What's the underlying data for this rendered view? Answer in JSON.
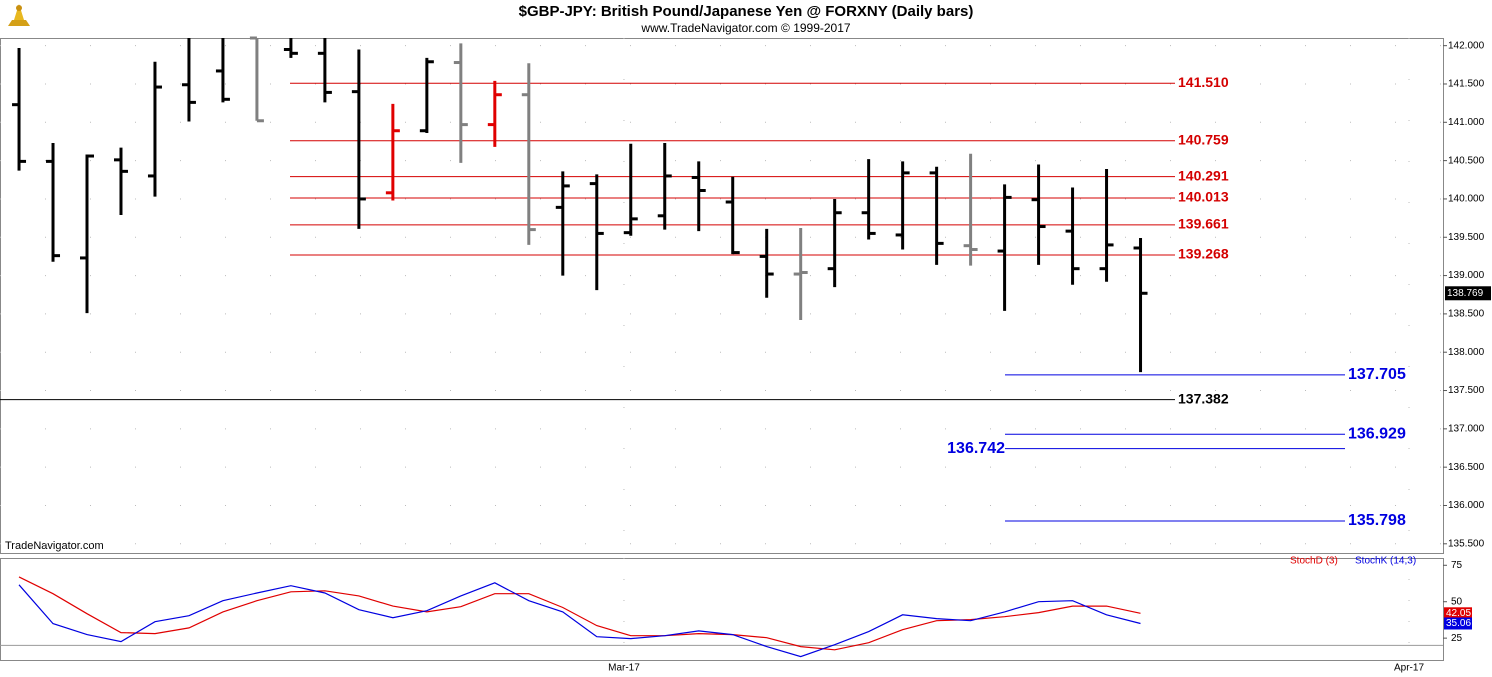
{
  "chart_data": [
    {
      "type": "ohlc",
      "title": "$GBP-JPY:  British Pound/Japanese Yen @ FORXNY  (Daily bars)",
      "subtitle": "www.TradeNavigator.com © 1999-2017",
      "watermark": "TradeNavigator.com",
      "xlim": [
        -0.56,
        41.9
      ],
      "ylim": [
        135.38,
        142.1
      ],
      "yticks": [
        {
          "value": 142,
          "label": "142.000"
        },
        {
          "value": 141.5,
          "label": "141.500"
        },
        {
          "value": 141,
          "label": "141.000"
        },
        {
          "value": 140.5,
          "label": "140.500"
        },
        {
          "value": 140,
          "label": "140.000"
        },
        {
          "value": 139.5,
          "label": "139.500"
        },
        {
          "value": 139,
          "label": "139.000"
        },
        {
          "value": 138.5,
          "label": "138.500"
        },
        {
          "value": 138,
          "label": "138.000"
        },
        {
          "value": 137.5,
          "label": "137.500"
        },
        {
          "value": 137,
          "label": "137.000"
        },
        {
          "value": 136.5,
          "label": "136.500"
        },
        {
          "value": 136,
          "label": "136.000"
        },
        {
          "value": 135.5,
          "label": "135.500"
        }
      ],
      "grid": true,
      "open": [
        141.23,
        140.49,
        139.23,
        140.51,
        140.3,
        141.49,
        141.67,
        142.1,
        141.95,
        141.9,
        141.4,
        140.08,
        140.89,
        141.78,
        140.97,
        141.36,
        139.89,
        140.2,
        139.56,
        139.78,
        140.28,
        139.96,
        139.25,
        139.02,
        139.09,
        139.82,
        139.53,
        140.34,
        139.39,
        139.32,
        139.99,
        139.58,
        139.09,
        139.36
      ],
      "high": [
        141.97,
        140.73,
        140.58,
        140.67,
        141.79,
        142.1,
        142.1,
        142.1,
        142.1,
        142.1,
        141.95,
        141.24,
        141.84,
        142.03,
        141.54,
        141.77,
        140.36,
        140.32,
        140.72,
        140.73,
        140.49,
        140.29,
        139.61,
        139.62,
        140.0,
        140.52,
        140.49,
        140.42,
        140.59,
        140.19,
        140.45,
        140.15,
        140.39,
        139.49
      ],
      "low": [
        140.37,
        139.18,
        138.51,
        139.79,
        140.03,
        141.01,
        141.26,
        141.02,
        141.84,
        141.26,
        139.61,
        139.98,
        140.86,
        140.47,
        140.68,
        139.4,
        139.0,
        138.81,
        139.52,
        139.6,
        139.58,
        139.28,
        138.71,
        138.42,
        138.85,
        139.47,
        139.34,
        139.14,
        139.13,
        138.54,
        139.14,
        138.88,
        138.92,
        137.74
      ],
      "close": [
        140.49,
        139.26,
        140.56,
        140.36,
        141.46,
        141.26,
        141.3,
        141.02,
        141.9,
        141.39,
        140.0,
        140.89,
        141.79,
        140.97,
        141.36,
        139.6,
        140.17,
        139.55,
        139.74,
        140.3,
        140.11,
        139.3,
        139.02,
        139.04,
        139.82,
        139.55,
        140.34,
        139.42,
        139.34,
        140.02,
        139.64,
        139.09,
        139.4,
        138.769
      ],
      "colors": [
        "#000000",
        "#000000",
        "#000000",
        "#000000",
        "#000000",
        "#000000",
        "#000000",
        "#808080",
        "#000000",
        "#000000",
        "#000000",
        "#e00000",
        "#000000",
        "#808080",
        "#e00000",
        "#808080",
        "#000000",
        "#000000",
        "#000000",
        "#000000",
        "#000000",
        "#000000",
        "#000000",
        "#808080",
        "#000000",
        "#000000",
        "#000000",
        "#000000",
        "#808080",
        "#000000",
        "#000000",
        "#000000",
        "#000000",
        "#000000"
      ],
      "last_value": {
        "value": 138.769,
        "label": "138.769"
      },
      "level_groups": [
        {
          "color": "#d40000",
          "values": [
            141.51,
            140.759,
            140.291,
            140.013,
            139.661,
            139.268
          ],
          "value_labels": [
            "141.510",
            "140.759",
            "140.291",
            "140.013",
            "139.661",
            "139.268"
          ]
        },
        {
          "color": "#000000",
          "values": [
            137.382
          ],
          "value_labels": [
            "137.382"
          ]
        },
        {
          "color": "#0000e0",
          "values": [
            137.705,
            136.929,
            136.742,
            135.798
          ],
          "value_labels": [
            "137.705",
            "136.929",
            "136.742",
            "135.798"
          ],
          "label_sides": [
            "right",
            "right",
            "left",
            "right"
          ]
        }
      ]
    },
    {
      "type": "line",
      "xlim": [
        -0.56,
        41.9
      ],
      "xticks": [
        {
          "value": 17.8,
          "label": "Mar-17"
        },
        {
          "value": 40.9,
          "label": "Apr-17"
        }
      ],
      "ylim": [
        10,
        80
      ],
      "yticks": [
        25,
        50,
        75
      ],
      "series": [
        {
          "name": "StochD (3)",
          "color": "#e00000",
          "values": [
            67,
            55.5,
            41.8,
            28.8,
            28.1,
            32,
            43,
            50.7,
            56.8,
            57.5,
            54,
            47,
            43,
            46.6,
            55.5,
            55.5,
            46,
            33.6,
            26.7,
            26.7,
            28.1,
            27.4,
            25.3,
            19.2,
            17,
            21.9,
            30.8,
            37,
            37.7,
            39.7,
            42.5,
            47,
            47,
            42.05
          ]
        },
        {
          "name": "StochK (14,3)",
          "color": "#0000e0",
          "values": [
            61.6,
            35,
            27.4,
            22.6,
            36.3,
            40.4,
            50.7,
            56,
            61,
            56,
            44.5,
            39,
            43.8,
            54,
            63,
            50.7,
            43,
            26,
            24.7,
            26.7,
            30,
            27.4,
            19.2,
            12.3,
            20.5,
            29.5,
            41,
            38.4,
            37,
            43,
            50,
            50.7,
            41,
            35.06
          ]
        }
      ]
    }
  ]
}
